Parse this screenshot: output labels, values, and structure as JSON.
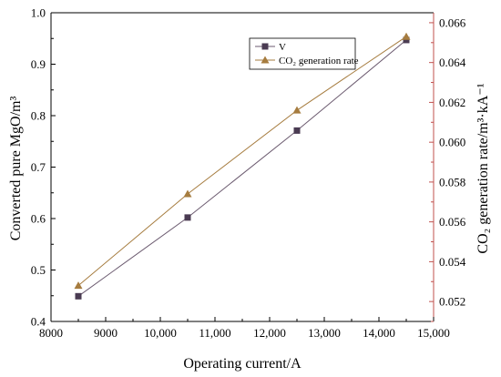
{
  "chart_data": {
    "type": "line",
    "xlabel": "Operating current/A",
    "ylabel_left": "Converted pure MgO/m³",
    "ylabel_right": "CO₂ generation rate/m³·kA⁻¹",
    "xlim": [
      8000,
      15000
    ],
    "ylim_left": [
      0.4,
      1.0
    ],
    "ylim_right": [
      0.051,
      0.0665
    ],
    "x_ticks": [
      "8000",
      "9000",
      "10,000",
      "11,000",
      "12,000",
      "13,000",
      "14,000",
      "15,000"
    ],
    "y_left_ticks": [
      "0.4",
      "0.5",
      "0.6",
      "0.7",
      "0.8",
      "0.9",
      "1.0"
    ],
    "y_right_ticks": [
      "0.052",
      "0.054",
      "0.056",
      "0.058",
      "0.060",
      "0.062",
      "0.064",
      "0.066"
    ],
    "grid": false,
    "legend_position": "top-right",
    "series": [
      {
        "name": "V",
        "axis": "left",
        "marker": "square",
        "color": "#4a3b52",
        "x": [
          8500,
          10500,
          12500,
          14500
        ],
        "y": [
          0.449,
          0.602,
          0.771,
          0.947
        ]
      },
      {
        "name": "CO₂ generation rate",
        "axis": "right",
        "marker": "triangle",
        "color": "#a67c3f",
        "x": [
          8500,
          10500,
          12500,
          14500
        ],
        "y": [
          0.0528,
          0.0574,
          0.0616,
          0.0653
        ]
      }
    ],
    "colors": {
      "left_axis": "#000000",
      "right_axis": "#c0504d",
      "line_v": "#6b5a6f",
      "line_co2": "#a67c3f"
    }
  }
}
